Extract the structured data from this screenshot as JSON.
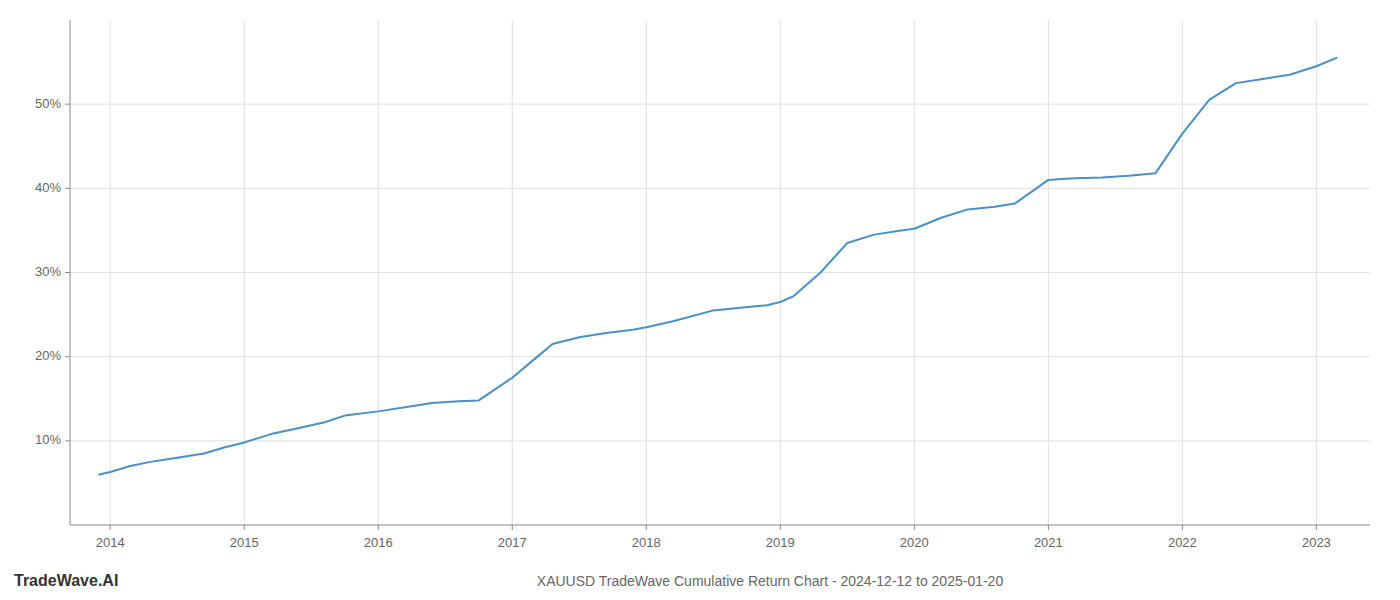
{
  "chart_data": {
    "type": "line",
    "title": "XAUUSD TradeWave Cumulative Return Chart - 2024-12-12 to 2025-01-20",
    "annotations": [
      "TradeWave.AI"
    ],
    "color": "#4a90c4",
    "grid": true,
    "x": [
      2013.92,
      2014.0,
      2014.15,
      2014.3,
      2014.5,
      2014.7,
      2014.85,
      2015.0,
      2015.2,
      2015.4,
      2015.6,
      2015.75,
      2016.0,
      2016.2,
      2016.4,
      2016.6,
      2016.75,
      2017.0,
      2017.15,
      2017.3,
      2017.5,
      2017.7,
      2017.9,
      2018.0,
      2018.2,
      2018.5,
      2018.7,
      2018.9,
      2019.0,
      2019.1,
      2019.3,
      2019.5,
      2019.7,
      2019.9,
      2020.0,
      2020.2,
      2020.4,
      2020.6,
      2020.75,
      2021.0,
      2021.1,
      2021.2,
      2021.4,
      2021.6,
      2021.8,
      2022.0,
      2022.2,
      2022.4,
      2022.6,
      2022.8,
      2023.0,
      2023.15
    ],
    "values": [
      6.0,
      6.3,
      7.0,
      7.5,
      8.0,
      8.5,
      9.2,
      9.8,
      10.8,
      11.5,
      12.2,
      13.0,
      13.5,
      14.0,
      14.5,
      14.7,
      14.8,
      17.5,
      19.5,
      21.5,
      22.3,
      22.8,
      23.2,
      23.5,
      24.2,
      25.5,
      25.8,
      26.1,
      26.5,
      27.2,
      30.0,
      33.5,
      34.5,
      35.0,
      35.2,
      36.5,
      37.5,
      37.8,
      38.2,
      41.0,
      41.1,
      41.2,
      41.3,
      41.5,
      41.8,
      46.5,
      50.5,
      52.5,
      53.0,
      53.5,
      54.5,
      55.5
    ],
    "xlim": [
      2013.7,
      2023.4
    ],
    "xticks": [
      2014,
      2015,
      2016,
      2017,
      2018,
      2019,
      2020,
      2021,
      2022,
      2023
    ],
    "ylim": [
      0,
      60
    ],
    "yticks": [
      {
        "value": 10,
        "label": "10%"
      },
      {
        "value": 20,
        "label": "20%"
      },
      {
        "value": 30,
        "label": "30%"
      },
      {
        "value": 40,
        "label": "40%"
      },
      {
        "value": 50,
        "label": "50%"
      }
    ]
  }
}
